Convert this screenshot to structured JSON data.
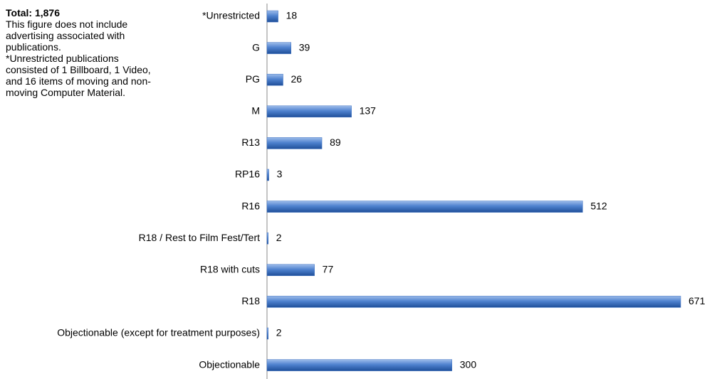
{
  "chart_data": {
    "type": "bar",
    "orientation": "horizontal",
    "annotation": {
      "title": "Total: 1,876",
      "lines": [
        "This figure does not include advertising associated with publications.",
        "*Unrestricted publications consisted of 1 Billboard, 1 Video, and 16 items of moving and non-moving Computer Material."
      ]
    },
    "categories": [
      "*Unrestricted",
      "G",
      "PG",
      "M",
      "R13",
      "RP16",
      "R16",
      "R18 / Rest to Film Fest/Tert",
      "R18 with cuts",
      "R18",
      "Objectionable (except for treatment purposes)",
      "Objectionable"
    ],
    "values": [
      18,
      39,
      26,
      137,
      89,
      3,
      512,
      2,
      77,
      671,
      2,
      300
    ],
    "color": "#3a6fc0"
  }
}
